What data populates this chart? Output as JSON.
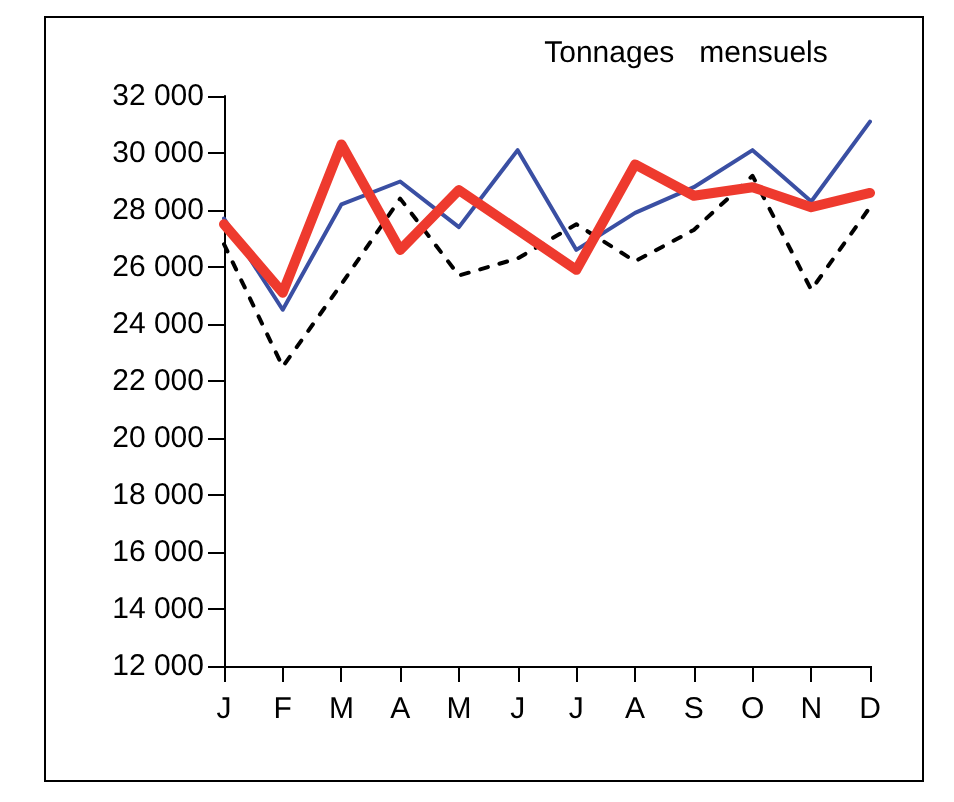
{
  "chart_data": {
    "type": "line",
    "title": "Tonnages   mensuels",
    "categories": [
      "J",
      "F",
      "M",
      "A",
      "M",
      "J",
      "J",
      "A",
      "S",
      "O",
      "N",
      "D"
    ],
    "series": [
      {
        "color": "#3a4fa3",
        "line_style": "solid",
        "values": [
          27700,
          24500,
          28200,
          29000,
          27400,
          30100,
          26600,
          27900,
          28800,
          30100,
          28300,
          31100
        ]
      },
      {
        "color": "#000000",
        "line_style": "dashed",
        "values": [
          26800,
          22500,
          25400,
          28400,
          25700,
          26300,
          27500,
          26200,
          27300,
          29200,
          25200,
          28100
        ]
      },
      {
        "color": "#ee3a2e",
        "line_style": "solid",
        "values": [
          27500,
          25100,
          30300,
          26600,
          28700,
          27300,
          25900,
          29600,
          28500,
          28800,
          28100,
          28600
        ]
      }
    ],
    "ylim": [
      12000,
      32000
    ],
    "yticks": [
      {
        "value": 12000,
        "label": "12 000"
      },
      {
        "value": 14000,
        "label": "14 000"
      },
      {
        "value": 16000,
        "label": "16 000"
      },
      {
        "value": 18000,
        "label": "18 000"
      },
      {
        "value": 20000,
        "label": "20 000"
      },
      {
        "value": 22000,
        "label": "22 000"
      },
      {
        "value": 24000,
        "label": "24 000"
      },
      {
        "value": 26000,
        "label": "26 000"
      },
      {
        "value": 28000,
        "label": "28 000"
      },
      {
        "value": 30000,
        "label": "30 000"
      },
      {
        "value": 32000,
        "label": "32 000"
      }
    ],
    "grid": false,
    "marker": "none"
  }
}
